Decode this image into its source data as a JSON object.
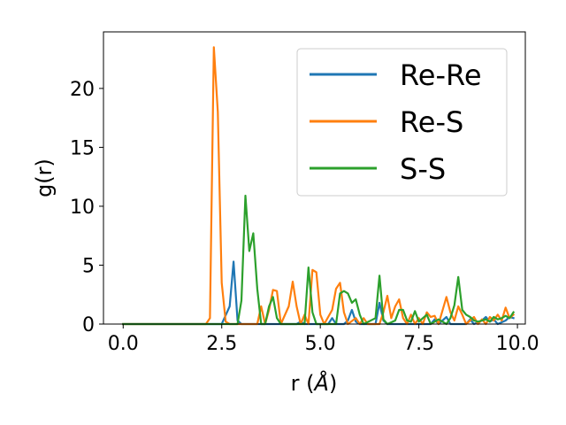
{
  "chart_data": {
    "type": "line",
    "title": "",
    "xlabel": "r (",
    "xlabel_unit": "Å",
    "xlabel_close": ")",
    "ylabel": "g(r)",
    "xlim": [
      -0.5,
      10.2
    ],
    "ylim": [
      0,
      24.8
    ],
    "xticks": [
      0.0,
      2.5,
      5.0,
      7.5,
      10.0
    ],
    "xtick_labels": [
      "0.0",
      "2.5",
      "5.0",
      "7.5",
      "10.0"
    ],
    "yticks": [
      0,
      5,
      10,
      15,
      20
    ],
    "ytick_labels": [
      "0",
      "5",
      "10",
      "15",
      "20"
    ],
    "grid": false,
    "legend_position": "top-right",
    "series": [
      {
        "name": "Re-Re",
        "color": "#1f77b4",
        "points": [
          [
            0.0,
            0
          ],
          [
            2.5,
            0
          ],
          [
            2.7,
            1.5
          ],
          [
            2.8,
            5.3
          ],
          [
            2.9,
            0.3
          ],
          [
            3.0,
            0
          ],
          [
            4.4,
            0
          ],
          [
            4.5,
            0.2
          ],
          [
            4.6,
            0
          ],
          [
            5.2,
            0
          ],
          [
            5.3,
            0.5
          ],
          [
            5.4,
            0
          ],
          [
            5.6,
            0
          ],
          [
            5.7,
            0.3
          ],
          [
            5.8,
            1.2
          ],
          [
            5.9,
            0.2
          ],
          [
            6.0,
            0
          ],
          [
            6.4,
            0
          ],
          [
            6.5,
            1.8
          ],
          [
            6.6,
            0.3
          ],
          [
            6.7,
            0
          ],
          [
            7.8,
            0
          ],
          [
            7.9,
            0.4
          ],
          [
            8.0,
            0
          ],
          [
            8.2,
            0.6
          ],
          [
            8.3,
            0
          ],
          [
            8.7,
            0
          ],
          [
            8.8,
            0.4
          ],
          [
            8.9,
            0
          ],
          [
            9.1,
            0.3
          ],
          [
            9.2,
            0.6
          ],
          [
            9.3,
            0.2
          ],
          [
            9.4,
            0.4
          ],
          [
            9.5,
            0
          ],
          [
            9.7,
            0.3
          ],
          [
            9.8,
            0.6
          ],
          [
            9.9,
            0.5
          ]
        ]
      },
      {
        "name": "Re-S",
        "color": "#ff7f0e",
        "points": [
          [
            0.0,
            0
          ],
          [
            2.1,
            0
          ],
          [
            2.2,
            0.5
          ],
          [
            2.3,
            23.5
          ],
          [
            2.4,
            18.0
          ],
          [
            2.5,
            3.5
          ],
          [
            2.6,
            0.2
          ],
          [
            2.7,
            0
          ],
          [
            3.4,
            0
          ],
          [
            3.5,
            1.5
          ],
          [
            3.6,
            0
          ],
          [
            3.7,
            1.2
          ],
          [
            3.8,
            2.9
          ],
          [
            3.9,
            2.8
          ],
          [
            4.0,
            0
          ],
          [
            4.2,
            1.5
          ],
          [
            4.3,
            3.6
          ],
          [
            4.4,
            1.5
          ],
          [
            4.5,
            0
          ],
          [
            4.6,
            0.8
          ],
          [
            4.7,
            0
          ],
          [
            4.8,
            4.6
          ],
          [
            4.9,
            4.4
          ],
          [
            5.0,
            0.8
          ],
          [
            5.1,
            0
          ],
          [
            5.3,
            1.2
          ],
          [
            5.4,
            3.0
          ],
          [
            5.5,
            3.5
          ],
          [
            5.6,
            1.0
          ],
          [
            5.7,
            0
          ],
          [
            5.9,
            0.5
          ],
          [
            6.0,
            0
          ],
          [
            6.1,
            0.5
          ],
          [
            6.2,
            0
          ],
          [
            6.5,
            0
          ],
          [
            6.6,
            1.0
          ],
          [
            6.7,
            2.4
          ],
          [
            6.8,
            0.5
          ],
          [
            6.9,
            1.5
          ],
          [
            7.0,
            2.1
          ],
          [
            7.1,
            0.5
          ],
          [
            7.2,
            0
          ],
          [
            7.3,
            0.8
          ],
          [
            7.4,
            0
          ],
          [
            7.5,
            0.5
          ],
          [
            7.6,
            0
          ],
          [
            7.7,
            1.0
          ],
          [
            7.8,
            0.6
          ],
          [
            7.9,
            0.7
          ],
          [
            8.0,
            0
          ],
          [
            8.2,
            2.3
          ],
          [
            8.3,
            1.0
          ],
          [
            8.4,
            0.3
          ],
          [
            8.5,
            1.5
          ],
          [
            8.6,
            0.8
          ],
          [
            8.7,
            0
          ],
          [
            8.9,
            0.6
          ],
          [
            9.0,
            0
          ],
          [
            9.1,
            0.4
          ],
          [
            9.2,
            0
          ],
          [
            9.3,
            0.6
          ],
          [
            9.4,
            0.3
          ],
          [
            9.5,
            0.8
          ],
          [
            9.6,
            0.3
          ],
          [
            9.7,
            1.4
          ],
          [
            9.8,
            0.5
          ],
          [
            9.9,
            0.8
          ]
        ]
      },
      {
        "name": "S-S",
        "color": "#2ca02c",
        "points": [
          [
            0.0,
            0
          ],
          [
            2.9,
            0
          ],
          [
            3.0,
            2.0
          ],
          [
            3.1,
            10.9
          ],
          [
            3.2,
            6.2
          ],
          [
            3.3,
            7.7
          ],
          [
            3.4,
            3.0
          ],
          [
            3.5,
            0
          ],
          [
            3.6,
            0
          ],
          [
            3.7,
            1.5
          ],
          [
            3.8,
            2.3
          ],
          [
            3.9,
            0.5
          ],
          [
            4.0,
            0
          ],
          [
            4.6,
            0
          ],
          [
            4.7,
            4.8
          ],
          [
            4.8,
            1.0
          ],
          [
            4.9,
            0
          ],
          [
            5.4,
            0
          ],
          [
            5.5,
            2.6
          ],
          [
            5.6,
            2.8
          ],
          [
            5.7,
            2.6
          ],
          [
            5.8,
            1.8
          ],
          [
            5.9,
            2.1
          ],
          [
            6.0,
            0.8
          ],
          [
            6.1,
            0
          ],
          [
            6.4,
            0.5
          ],
          [
            6.5,
            4.1
          ],
          [
            6.6,
            0.4
          ],
          [
            6.7,
            0
          ],
          [
            6.9,
            0.3
          ],
          [
            7.0,
            1.2
          ],
          [
            7.1,
            1.2
          ],
          [
            7.2,
            0.3
          ],
          [
            7.3,
            0.2
          ],
          [
            7.4,
            1.1
          ],
          [
            7.5,
            0.2
          ],
          [
            7.6,
            0.5
          ],
          [
            7.7,
            0.8
          ],
          [
            7.8,
            0
          ],
          [
            8.0,
            0.4
          ],
          [
            8.1,
            0.2
          ],
          [
            8.2,
            0
          ],
          [
            8.3,
            0.5
          ],
          [
            8.4,
            1.6
          ],
          [
            8.5,
            4.0
          ],
          [
            8.6,
            1.2
          ],
          [
            8.7,
            0.8
          ],
          [
            8.8,
            0.6
          ],
          [
            8.9,
            0.3
          ],
          [
            9.0,
            0.2
          ],
          [
            9.1,
            0.3
          ],
          [
            9.2,
            0.4
          ],
          [
            9.3,
            0.2
          ],
          [
            9.4,
            0.6
          ],
          [
            9.5,
            0.4
          ],
          [
            9.6,
            0.5
          ],
          [
            9.7,
            0.7
          ],
          [
            9.8,
            0.5
          ],
          [
            9.9,
            1.0
          ]
        ]
      }
    ]
  }
}
